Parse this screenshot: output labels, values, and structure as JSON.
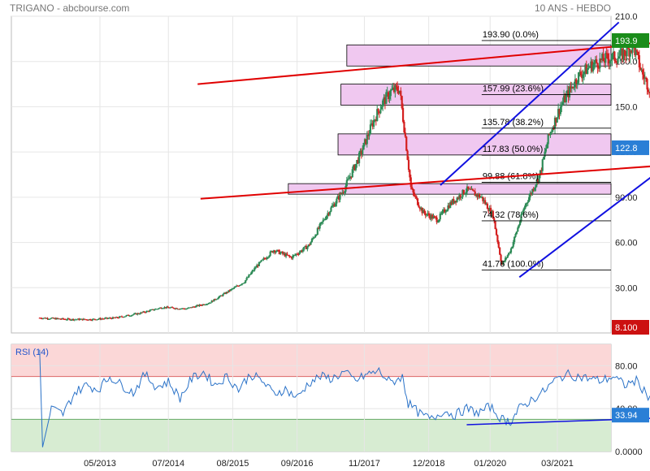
{
  "header": {
    "left": "TRIGANO - abcbourse.com",
    "right": "10 ANS - HEBDO"
  },
  "colors": {
    "up": "#2e8b57",
    "down": "#d42020",
    "fib_fill": "#f0c8f0",
    "trend_red": "#e00000",
    "trend_blue": "#1010e0",
    "rsi_line": "#2a72c8",
    "last_price_tag": "#2a7fd6",
    "top_tag": "#1a8c1a",
    "bottom_tag": "#cc1111"
  },
  "chart_data": [
    {
      "type": "candlestick",
      "x_tick_labels": [
        "05/2013",
        "07/2014",
        "08/2015",
        "09/2016",
        "11/2017",
        "12/2018",
        "01/2020",
        "03/2021"
      ],
      "y_tick_labels": [
        "210.0",
        "180.0",
        "150.0",
        "120.0",
        "90.00",
        "60.00",
        "30.00"
      ],
      "ylim": [
        0,
        210
      ],
      "grid": true,
      "price_path": [
        [
          2012.3,
          10
        ],
        [
          2012.8,
          9
        ],
        [
          2013.2,
          9
        ],
        [
          2013.6,
          10
        ],
        [
          2014.0,
          13
        ],
        [
          2014.4,
          17
        ],
        [
          2014.8,
          16
        ],
        [
          2015.2,
          20
        ],
        [
          2015.5,
          27
        ],
        [
          2015.8,
          34
        ],
        [
          2016.0,
          44
        ],
        [
          2016.3,
          55
        ],
        [
          2016.6,
          50
        ],
        [
          2016.9,
          58
        ],
        [
          2017.2,
          78
        ],
        [
          2017.5,
          95
        ],
        [
          2017.8,
          120
        ],
        [
          2018.0,
          140
        ],
        [
          2018.15,
          152
        ],
        [
          2018.3,
          160
        ],
        [
          2018.45,
          162
        ],
        [
          2018.55,
          130
        ],
        [
          2018.65,
          95
        ],
        [
          2018.85,
          80
        ],
        [
          2019.1,
          75
        ],
        [
          2019.3,
          85
        ],
        [
          2019.6,
          95
        ],
        [
          2019.85,
          90
        ],
        [
          2020.05,
          78
        ],
        [
          2020.2,
          45
        ],
        [
          2020.35,
          55
        ],
        [
          2020.6,
          85
        ],
        [
          2020.85,
          105
        ],
        [
          2021.0,
          130
        ],
        [
          2021.2,
          150
        ],
        [
          2021.5,
          170
        ],
        [
          2021.75,
          178
        ],
        [
          2022.0,
          182
        ],
        [
          2022.2,
          183
        ],
        [
          2022.45,
          190
        ],
        [
          2022.6,
          172
        ],
        [
          2022.75,
          160
        ],
        [
          2022.95,
          150
        ],
        [
          2023.05,
          132
        ],
        [
          2023.15,
          122.8
        ]
      ],
      "last_price": "122.8",
      "fib_levels": [
        {
          "value": 193.9,
          "label": "193.90",
          "pct": "(0.0%)"
        },
        {
          "value": 157.99,
          "label": "157.99",
          "pct": "(23.6%)"
        },
        {
          "value": 135.78,
          "label": "135.78",
          "pct": "(38.2%)"
        },
        {
          "value": 117.83,
          "label": "117.83",
          "pct": "(50.0%)"
        },
        {
          "value": 99.88,
          "label": "99.88",
          "pct": "(61.8%)"
        },
        {
          "value": 74.32,
          "label": "74.32",
          "pct": "(78.6%)"
        },
        {
          "value": 41.76,
          "label": "41.76",
          "pct": "(100.0%)"
        }
      ],
      "fib_zones": [
        {
          "from_year": 2017.55,
          "top": 191,
          "bottom": 177
        },
        {
          "from_year": 2017.45,
          "top": 165,
          "bottom": 151
        },
        {
          "from_year": 2017.4,
          "top": 132,
          "bottom": 118
        },
        {
          "from_year": 2016.55,
          "top": 99,
          "bottom": 92
        }
      ],
      "trendlines": [
        {
          "color": "red",
          "from": [
            2015.0,
            165
          ],
          "to": [
            2023.3,
            194
          ]
        },
        {
          "color": "red",
          "from": [
            2015.05,
            89
          ],
          "to": [
            2023.3,
            112
          ]
        },
        {
          "color": "blue",
          "from": [
            2020.5,
            37
          ],
          "to": [
            2023.25,
            118
          ]
        },
        {
          "color": "blue",
          "from": [
            2019.15,
            98
          ],
          "to": [
            2022.2,
            206
          ]
        }
      ],
      "tags": {
        "top": "193.9",
        "last": "122.8",
        "bottom": "8.100"
      }
    },
    {
      "type": "line",
      "title": "RSI (14)",
      "ylim": [
        0,
        100
      ],
      "y_tick_labels": [
        "80.00",
        "40.00",
        "0.0000"
      ],
      "zones": {
        "overbought": 70,
        "oversold": 30
      },
      "rsi_path": [
        [
          2012.3,
          95
        ],
        [
          2012.35,
          4
        ],
        [
          2012.5,
          40
        ],
        [
          2012.7,
          35
        ],
        [
          2012.9,
          55
        ],
        [
          2013.1,
          62
        ],
        [
          2013.3,
          58
        ],
        [
          2013.5,
          70
        ],
        [
          2013.7,
          62
        ],
        [
          2013.9,
          55
        ],
        [
          2014.1,
          72
        ],
        [
          2014.3,
          60
        ],
        [
          2014.5,
          65
        ],
        [
          2014.7,
          50
        ],
        [
          2014.9,
          68
        ],
        [
          2015.1,
          74
        ],
        [
          2015.3,
          62
        ],
        [
          2015.5,
          70
        ],
        [
          2015.7,
          58
        ],
        [
          2015.9,
          72
        ],
        [
          2016.1,
          66
        ],
        [
          2016.3,
          54
        ],
        [
          2016.5,
          58
        ],
        [
          2016.7,
          50
        ],
        [
          2016.9,
          64
        ],
        [
          2017.1,
          70
        ],
        [
          2017.3,
          68
        ],
        [
          2017.5,
          74
        ],
        [
          2017.7,
          66
        ],
        [
          2017.9,
          72
        ],
        [
          2018.1,
          75
        ],
        [
          2018.3,
          64
        ],
        [
          2018.5,
          70
        ],
        [
          2018.6,
          45
        ],
        [
          2018.8,
          35
        ],
        [
          2019.0,
          30
        ],
        [
          2019.2,
          38
        ],
        [
          2019.4,
          34
        ],
        [
          2019.6,
          40
        ],
        [
          2019.8,
          36
        ],
        [
          2020.0,
          42
        ],
        [
          2020.2,
          30
        ],
        [
          2020.35,
          28
        ],
        [
          2020.5,
          40
        ],
        [
          2020.7,
          48
        ],
        [
          2020.9,
          55
        ],
        [
          2021.1,
          66
        ],
        [
          2021.3,
          72
        ],
        [
          2021.5,
          70
        ],
        [
          2021.7,
          68
        ],
        [
          2021.9,
          66
        ],
        [
          2022.1,
          70
        ],
        [
          2022.3,
          62
        ],
        [
          2022.5,
          66
        ],
        [
          2022.7,
          52
        ],
        [
          2022.9,
          50
        ],
        [
          2023.05,
          38
        ],
        [
          2023.15,
          33.94
        ]
      ],
      "support_line": {
        "from": [
          2019.6,
          25
        ],
        "to": [
          2023.3,
          32
        ]
      },
      "last_value": "33.94"
    }
  ]
}
